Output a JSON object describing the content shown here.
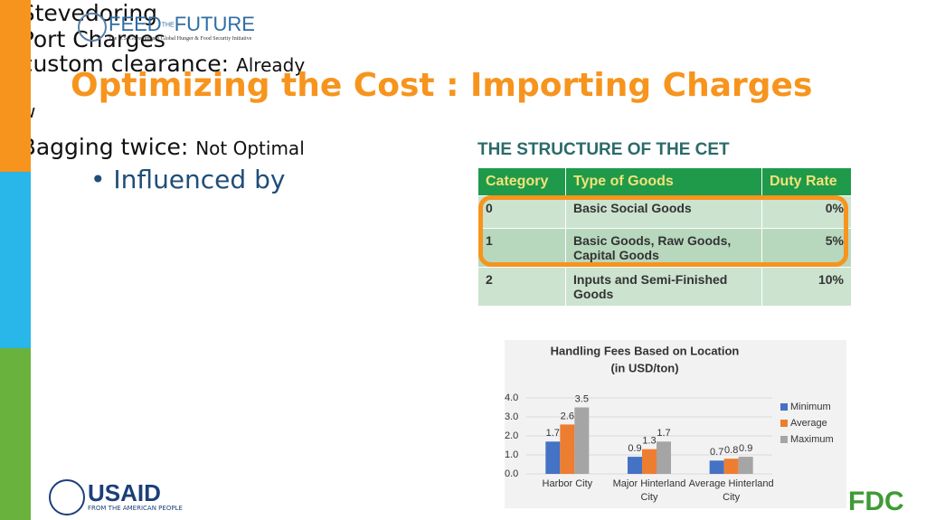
{
  "logo": {
    "word1": "FEED",
    "small": "THE",
    "word2": "FUTURE",
    "tagline": "The U.S. Government's Global Hunger & Food Security Initiative"
  },
  "title": "Optimizing the Cost : Importing Charges",
  "bullet": "Influenced  by",
  "sub_bullets": [
    {
      "text": "Stevedoring"
    },
    {
      "text": "Port Charges"
    },
    {
      "text": "custom clearance:",
      "note": "Already Low"
    },
    {
      "text": "Bagging twice:",
      "note": "Not Optimal"
    }
  ],
  "table": {
    "title": "THE STRUCTURE OF THE CET",
    "header": [
      "Category",
      "Type of Goods",
      "Duty Rate"
    ],
    "rows": [
      [
        "0",
        "Basic Social Goods",
        "0%"
      ],
      [
        "1",
        "Basic Goods, Raw Goods, Capital Goods",
        "5%"
      ],
      [
        "2",
        "Inputs and Semi-Finished Goods",
        "10%"
      ]
    ]
  },
  "footer": {
    "usaid": "USAID",
    "usaid_tagline": "FROM THE AMERICAN PEOPLE",
    "fdc": "FDC"
  },
  "chart_data": {
    "type": "bar",
    "title": "Handling Fees Based on Location",
    "subtitle": "(in USD/ton)",
    "categories": [
      "Harbor City",
      "Major Hinterland City",
      "Average Hinterland City"
    ],
    "series": [
      {
        "name": "Minimum",
        "color": "#4472c4",
        "values": [
          1.7,
          0.9,
          0.7
        ]
      },
      {
        "name": "Average",
        "color": "#ed7d31",
        "values": [
          2.6,
          1.3,
          0.8
        ]
      },
      {
        "name": "Maximum",
        "color": "#a5a5a5",
        "values": [
          3.5,
          1.7,
          0.9
        ]
      }
    ],
    "ylim": [
      0,
      4
    ],
    "yticks": [
      {
        "value": 0,
        "label": "0.0"
      },
      {
        "value": 1,
        "label": "1.0"
      },
      {
        "value": 2,
        "label": "2.0"
      },
      {
        "value": 3,
        "label": "3.0"
      },
      {
        "value": 4,
        "label": "4.0"
      }
    ],
    "legend": "right"
  }
}
